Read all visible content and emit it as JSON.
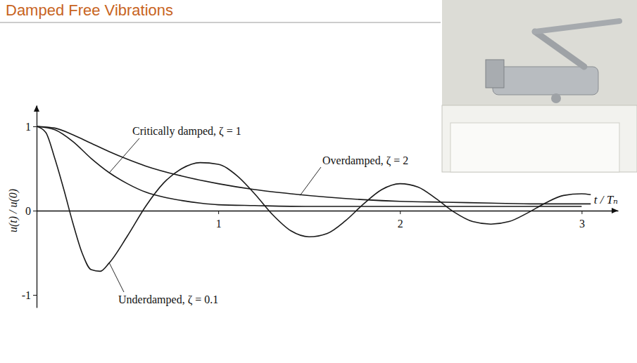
{
  "chart_data": {
    "type": "line",
    "title": "Damped Free Vibrations",
    "xlabel": "t / Tₙ",
    "ylabel": "u(t) / u(0)",
    "xlim": [
      0,
      3.2
    ],
    "ylim": [
      -1.15,
      1.25
    ],
    "xticks": [
      1,
      2,
      3
    ],
    "yticks": [
      -1,
      0,
      1
    ],
    "grid": false,
    "series": [
      {
        "color": "#1a1a1a",
        "line_style": "solid",
        "x": [
          0,
          0.05,
          0.1,
          0.15,
          0.2,
          0.25,
          0.3,
          0.35,
          0.4,
          0.5,
          0.6,
          0.7,
          0.8,
          0.9,
          1.0,
          1.1,
          1.2,
          1.3,
          1.4,
          1.5,
          1.6,
          1.7,
          1.8,
          1.9,
          2.0,
          2.1,
          2.2,
          2.3,
          2.4,
          2.5,
          2.6,
          2.7,
          2.8,
          2.9,
          3.0,
          3.05
        ],
        "values": [
          1,
          0.93,
          0.62,
          0.25,
          -0.15,
          -0.5,
          -0.7,
          -0.72,
          -0.62,
          -0.3,
          0.05,
          0.33,
          0.5,
          0.57,
          0.55,
          0.42,
          0.2,
          -0.05,
          -0.24,
          -0.31,
          -0.27,
          -0.12,
          0.08,
          0.25,
          0.32,
          0.28,
          0.14,
          -0.02,
          -0.13,
          -0.16,
          -0.13,
          -0.03,
          0.09,
          0.18,
          0.2,
          0.19
        ]
      },
      {
        "color": "#1a1a1a",
        "line_style": "solid",
        "x": [
          0,
          0.1,
          0.2,
          0.3,
          0.4,
          0.5,
          0.6,
          0.7,
          0.8,
          0.9,
          1.0,
          1.2,
          1.5,
          2.0,
          2.5,
          3.0
        ],
        "values": [
          1,
          0.96,
          0.82,
          0.62,
          0.45,
          0.32,
          0.22,
          0.16,
          0.12,
          0.09,
          0.07,
          0.06,
          0.05,
          0.05,
          0.05,
          0.05
        ]
      },
      {
        "color": "#1a1a1a",
        "line_style": "solid",
        "x": [
          0,
          0.1,
          0.2,
          0.3,
          0.4,
          0.5,
          0.6,
          0.8,
          1.0,
          1.2,
          1.4,
          1.6,
          1.8,
          2.0,
          2.25,
          2.5,
          2.75,
          3.0,
          3.05
        ],
        "values": [
          1,
          0.98,
          0.9,
          0.8,
          0.7,
          0.61,
          0.53,
          0.41,
          0.32,
          0.25,
          0.2,
          0.16,
          0.13,
          0.11,
          0.1,
          0.09,
          0.08,
          0.08,
          0.08
        ]
      }
    ],
    "annotations": [
      {
        "text": "Underdamped, ζ = 0.1",
        "x": 0.4,
        "y": -0.62
      },
      {
        "text": "Critically damped, ζ = 1",
        "x": 0.4,
        "y": 0.45
      },
      {
        "text": "Overdamped, ζ = 2",
        "x": 1.45,
        "y": 0.18
      }
    ]
  }
}
